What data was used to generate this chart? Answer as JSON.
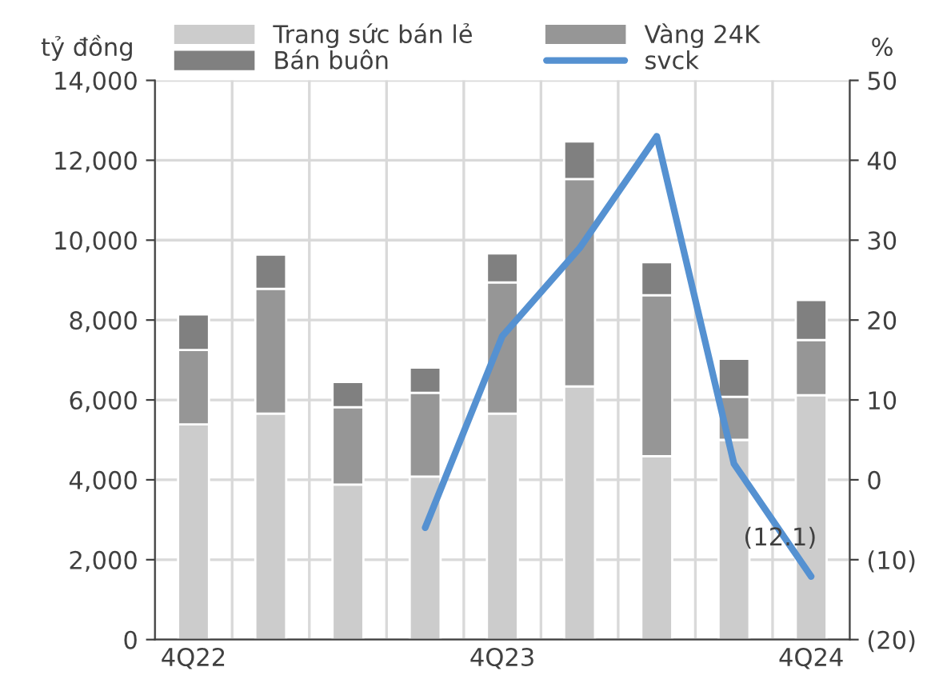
{
  "chart_data": {
    "type": "bar",
    "stacked": true,
    "ylabel": "tỷ đồng",
    "y2label": "%",
    "categories": [
      "4Q22",
      null,
      null,
      null,
      "4Q23",
      null,
      null,
      null,
      "4Q24"
    ],
    "series": [
      {
        "name": "Trang sức bán lẻ",
        "color": "#cccccc",
        "values": [
          5390,
          5660,
          3880,
          4080,
          5660,
          6340,
          4590,
          5000,
          6120
        ]
      },
      {
        "name": "Vàng 24K",
        "color": "#969696",
        "values": [
          1860,
          3120,
          1940,
          2100,
          3280,
          5190,
          4030,
          1080,
          1380
        ]
      },
      {
        "name": "Bán buôn",
        "color": "#808080",
        "values": [
          890,
          860,
          630,
          630,
          730,
          940,
          830,
          950,
          1000
        ]
      },
      {
        "name": "svck",
        "type": "line",
        "axis": "y2",
        "color": "#5591d1",
        "values": [
          null,
          null,
          null,
          -6,
          18,
          29,
          43,
          2,
          -12.1
        ],
        "value_labels": [
          null,
          null,
          null,
          null,
          null,
          null,
          null,
          null,
          "(12.1)"
        ]
      }
    ],
    "ylim": [
      0,
      14000
    ],
    "yticks": [
      {
        "value": 0,
        "label": "0"
      },
      {
        "value": 2000,
        "label": "2,000"
      },
      {
        "value": 4000,
        "label": "4,000"
      },
      {
        "value": 6000,
        "label": "6,000"
      },
      {
        "value": 8000,
        "label": "8,000"
      },
      {
        "value": 10000,
        "label": "10,000"
      },
      {
        "value": 12000,
        "label": "12,000"
      },
      {
        "value": 14000,
        "label": "14,000"
      }
    ],
    "y2lim": [
      -20,
      50
    ],
    "y2ticks": [
      {
        "value": -20,
        "label": "(20)"
      },
      {
        "value": -10,
        "label": "(10)"
      },
      0,
      10,
      20,
      30,
      40,
      50
    ],
    "grid": true,
    "legend": "top"
  }
}
